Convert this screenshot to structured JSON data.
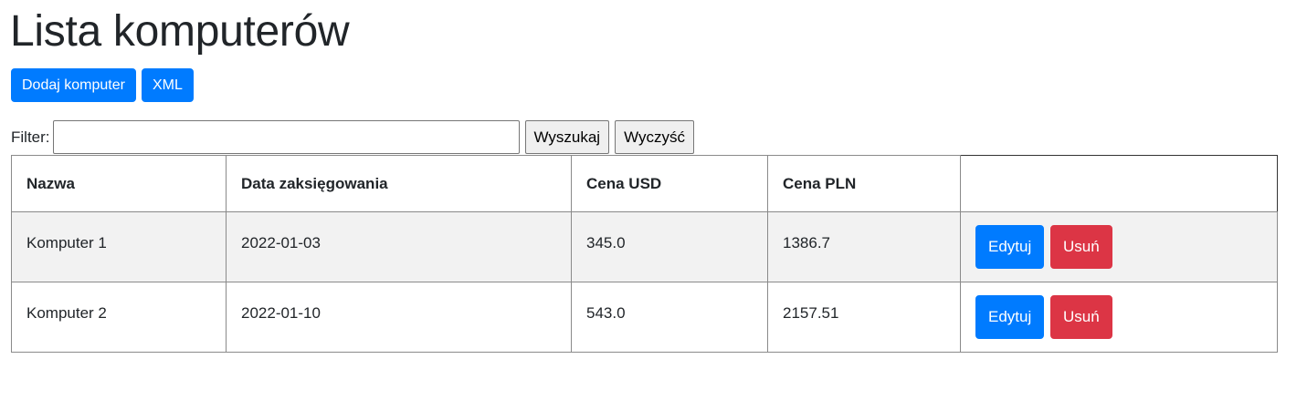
{
  "page": {
    "title": "Lista komputerów"
  },
  "toolbar": {
    "add_label": "Dodaj komputer",
    "xml_label": "XML"
  },
  "filter": {
    "label": "Filter:",
    "value": "",
    "search_label": "Wyszukaj",
    "clear_label": "Wyczyść"
  },
  "table": {
    "headers": [
      "Nazwa",
      "Data zaksięgowania",
      "Cena USD",
      "Cena PLN",
      ""
    ],
    "rows": [
      {
        "name": "Komputer 1",
        "date": "2022-01-03",
        "usd": "345.0",
        "pln": "1386.7",
        "edit": "Edytuj",
        "delete": "Usuń"
      },
      {
        "name": "Komputer 2",
        "date": "2022-01-10",
        "usd": "543.0",
        "pln": "2157.51",
        "edit": "Edytuj",
        "delete": "Usuń"
      }
    ]
  },
  "colors": {
    "primary": "#007bff",
    "danger": "#dc3545",
    "row_stripe": "#f2f2f2"
  }
}
